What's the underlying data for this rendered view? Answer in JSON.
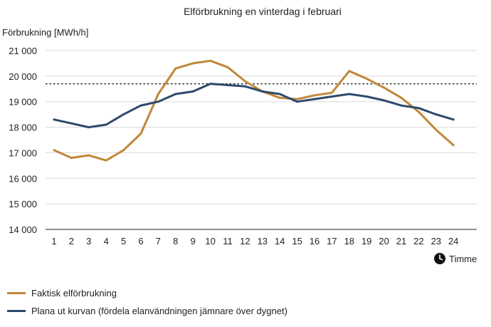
{
  "chart_data": {
    "type": "line",
    "title": "Elförbrukning en vinterdag i februari",
    "ylabel": "Förbrukning [MWh/h]",
    "xlabel": "Timme",
    "x": [
      1,
      2,
      3,
      4,
      5,
      6,
      7,
      8,
      9,
      10,
      11,
      12,
      13,
      14,
      15,
      16,
      17,
      18,
      19,
      20,
      21,
      22,
      23,
      24
    ],
    "ylim": [
      14000,
      21000
    ],
    "yticks": [
      14000,
      15000,
      16000,
      17000,
      18000,
      19000,
      20000,
      21000
    ],
    "ytick_labels": [
      "14 000",
      "15 000",
      "16 000",
      "17 000",
      "18 000",
      "19 000",
      "20 000",
      "21 000"
    ],
    "grid": true,
    "reference_line": 19700,
    "series": [
      {
        "name": "Faktisk elförbrukning",
        "color": "#c0883a",
        "values": [
          17100,
          16800,
          16900,
          16700,
          17100,
          17750,
          19300,
          20300,
          20500,
          20600,
          20350,
          19800,
          19400,
          19150,
          19100,
          19250,
          19350,
          20200,
          19900,
          19550,
          19150,
          18600,
          17900,
          17300
        ]
      },
      {
        "name": "Plana ut kurvan (fördela elanvändningen jämnare över dygnet)",
        "color": "#2e4a6b",
        "values": [
          18300,
          18150,
          18000,
          18100,
          18500,
          18850,
          19000,
          19300,
          19400,
          19700,
          19650,
          19600,
          19400,
          19300,
          19000,
          19100,
          19200,
          19300,
          19200,
          19050,
          18850,
          18750,
          18500,
          18300
        ]
      }
    ]
  },
  "clock_icon": "clock-icon",
  "axis_reference_color": "#222222"
}
